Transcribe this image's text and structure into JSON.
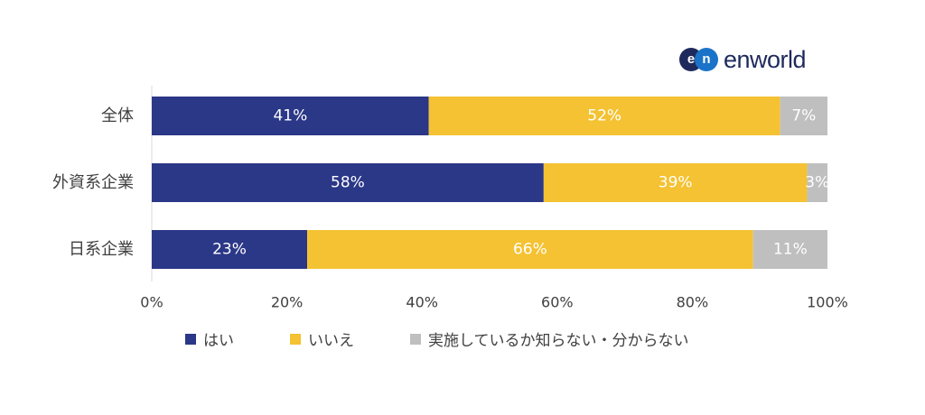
{
  "brand": {
    "logo_mark": "en",
    "logo_text": "enworld"
  },
  "colors": {
    "hai": "#2b3787",
    "iie": "#f4c232",
    "unknown": "#bfbfbf"
  },
  "chart_data": {
    "type": "bar",
    "orientation": "horizontal",
    "stacked": true,
    "categories": [
      "全体",
      "外資系企業",
      "日系企業"
    ],
    "series": [
      {
        "name": "はい",
        "values": [
          41,
          58,
          23
        ]
      },
      {
        "name": "いいえ",
        "values": [
          52,
          39,
          66
        ]
      },
      {
        "name": "実施しているか知らない・分からない",
        "values": [
          7,
          3,
          11
        ]
      }
    ],
    "data_labels": [
      [
        "41%",
        "52%",
        "7%"
      ],
      [
        "58%",
        "39%",
        "3%"
      ],
      [
        "23%",
        "66%",
        "11%"
      ]
    ],
    "x_ticks": [
      "0%",
      "20%",
      "40%",
      "60%",
      "80%",
      "100%"
    ],
    "xlim": [
      0,
      100
    ],
    "unit": "%",
    "grid": false,
    "legend_position": "bottom"
  }
}
